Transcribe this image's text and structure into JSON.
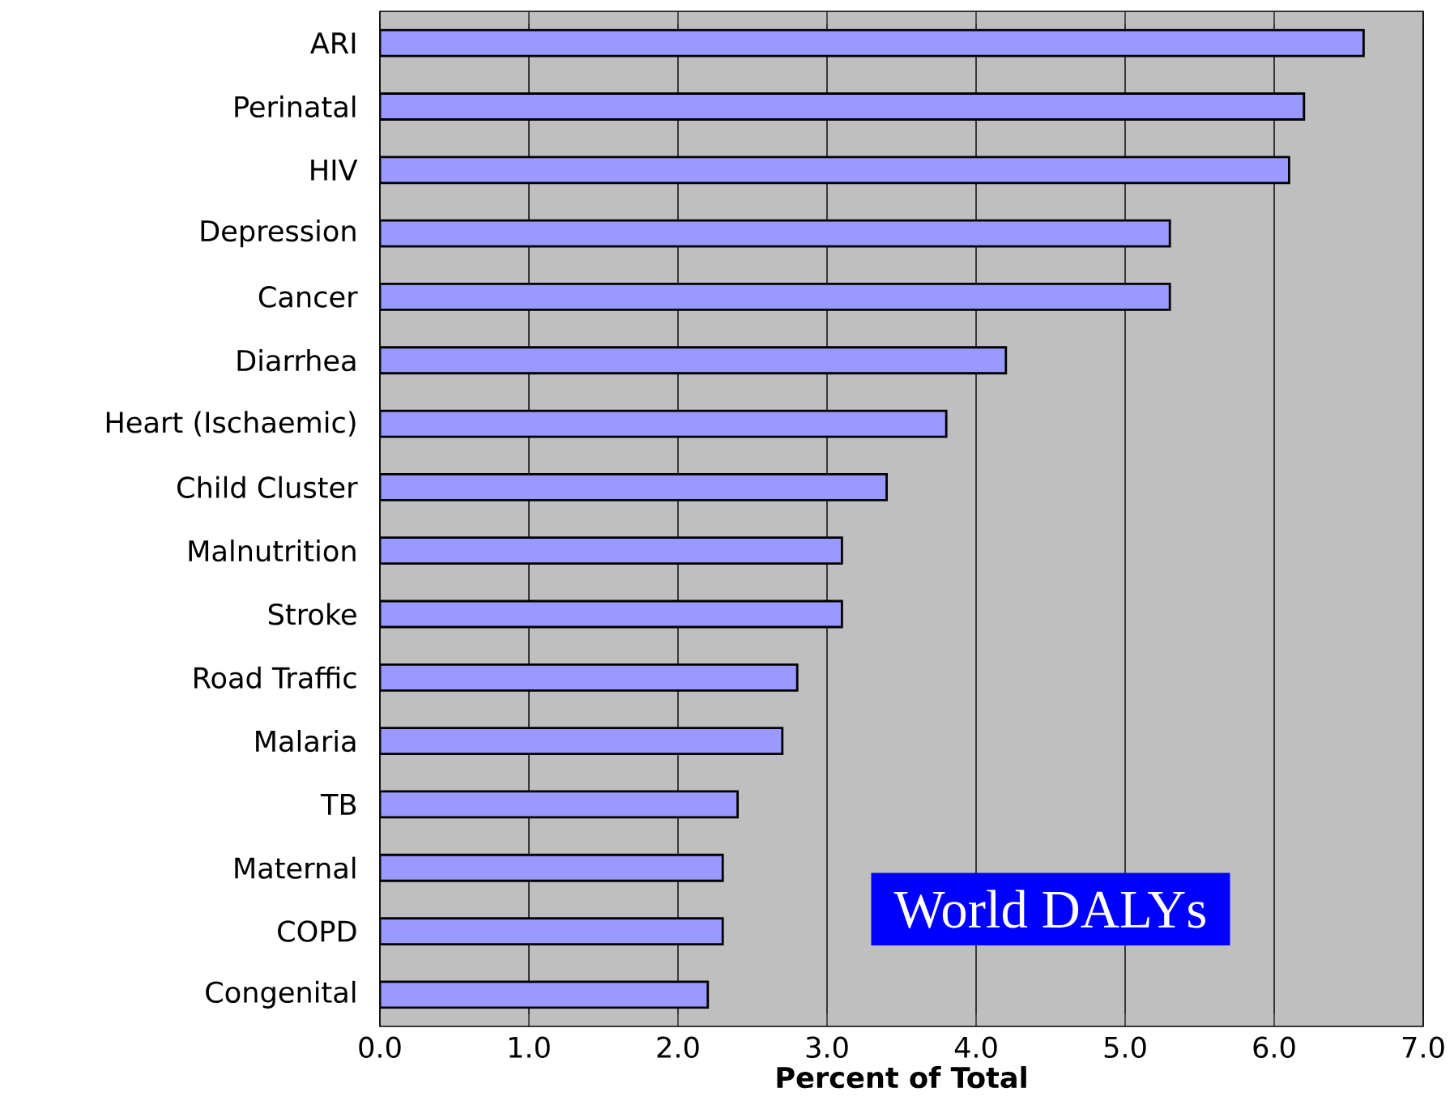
{
  "chart_data": {
    "type": "bar",
    "orientation": "horizontal",
    "title": "World DALYs",
    "xlabel": "Percent of Total",
    "categories": [
      "ARI",
      "Perinatal",
      "HIV",
      "Depression",
      "Cancer",
      "Diarrhea",
      "Heart (Ischaemic)",
      "Child Cluster",
      "Malnutrition",
      "Stroke",
      "Road Traffic",
      "Malaria",
      "TB",
      "Maternal",
      "COPD",
      "Congenital"
    ],
    "values": [
      6.6,
      6.2,
      6.1,
      5.3,
      5.3,
      4.2,
      3.8,
      3.4,
      3.1,
      3.1,
      2.8,
      2.7,
      2.4,
      2.3,
      2.3,
      2.2
    ],
    "color": "#9999ff",
    "xlim": [
      0,
      7
    ],
    "xticks": [
      {
        "value": 0,
        "label": "0.0"
      },
      {
        "value": 1,
        "label": "1.0"
      },
      {
        "value": 2,
        "label": "2.0"
      },
      {
        "value": 3,
        "label": "3.0"
      },
      {
        "value": 4,
        "label": "4.0"
      },
      {
        "value": 5,
        "label": "5.0"
      },
      {
        "value": 6,
        "label": "6.0"
      },
      {
        "value": 7,
        "label": "7.0"
      }
    ],
    "grid": "x"
  }
}
